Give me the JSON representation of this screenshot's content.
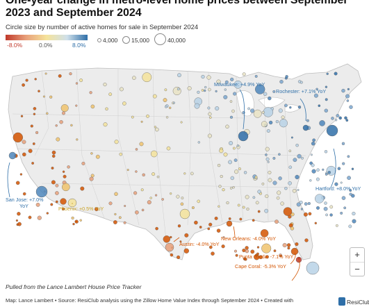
{
  "title": "One-year change in metro-level home prices between September 2023 and September 2024",
  "subtitle": "Circle size by number of active homes for sale in September 2024",
  "legend": {
    "color_ticks": [
      "-8.0%",
      "0.0%",
      "8.0%"
    ],
    "size_labels": [
      "4,000",
      "15,000",
      "40,000"
    ],
    "colors": {
      "negative": "#c0392b",
      "neutral": "#f5e39b",
      "positive": "#2f6fa8"
    }
  },
  "annotations": [
    {
      "id": "milwaukee",
      "text": "Milwaukee: +4.9% YoY",
      "color": "#2f6fa8"
    },
    {
      "id": "rochester",
      "text": "Rochester: +7.1% YoY",
      "color": "#2f6fa8"
    },
    {
      "id": "hartford",
      "text": "Hartford: +8.0% YoY",
      "color": "#2f6fa8"
    },
    {
      "id": "sanjose1",
      "text": "San Jose: +7.0%",
      "color": "#2f6fa8"
    },
    {
      "id": "sanjose2",
      "text": "YoY",
      "color": "#2f6fa8"
    },
    {
      "id": "phoenix",
      "text": "Phoenix: +0.5% YoY",
      "color": "#c9a227"
    },
    {
      "id": "neworleans",
      "text": "New Orleans: -4.0% YoY",
      "color": "#d35400"
    },
    {
      "id": "austin",
      "text": "Austin: -4.0% YoY",
      "color": "#d35400"
    },
    {
      "id": "puntagorda",
      "text": "Punta Gorda: -7.1% YoY",
      "color": "#d35400"
    },
    {
      "id": "capecoral",
      "text": "Cape Coral: -5.3% YoY",
      "color": "#d35400"
    }
  ],
  "zoom": {
    "in": "+",
    "out": "−"
  },
  "footer": {
    "source_note": "Pulled from the Lance Lambert House Price Tracker",
    "credits": "Map: Lance Lambert • Source: ResiClub analysis using the Zillow Home Value Index through September 2024 • Created with",
    "logo_text": "ResiClub"
  }
}
